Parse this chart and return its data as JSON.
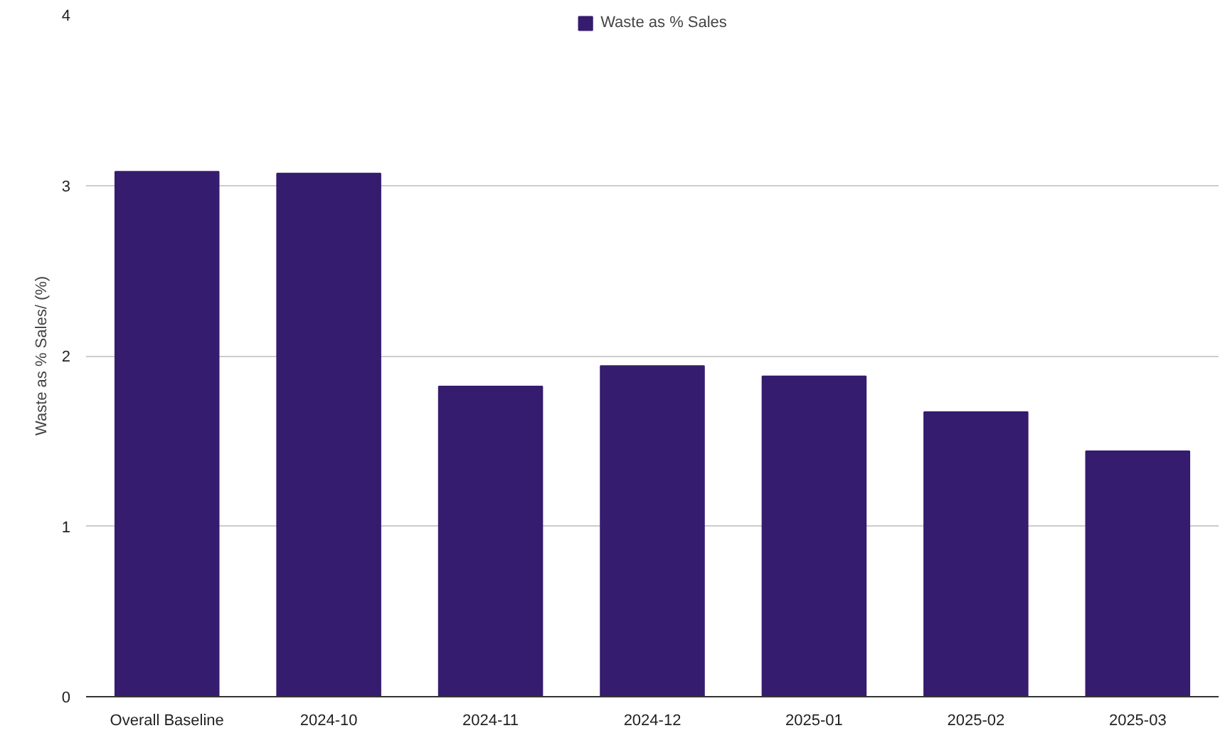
{
  "chart_data": {
    "type": "bar",
    "ylabel": "Waste as % Sales/ (%)",
    "categories": [
      "Overall Baseline",
      "2024-10",
      "2024-11",
      "2024-12",
      "2025-01",
      "2025-02",
      "2025-03"
    ],
    "series": [
      {
        "name": "Waste as % Sales",
        "color": "#361c6e",
        "values": [
          3.08,
          3.07,
          1.82,
          1.94,
          1.88,
          1.67,
          1.44
        ]
      }
    ],
    "ylim": [
      0,
      4
    ],
    "yticks": [
      0,
      1,
      2,
      3,
      4
    ],
    "grid": "y",
    "legend": "top"
  }
}
